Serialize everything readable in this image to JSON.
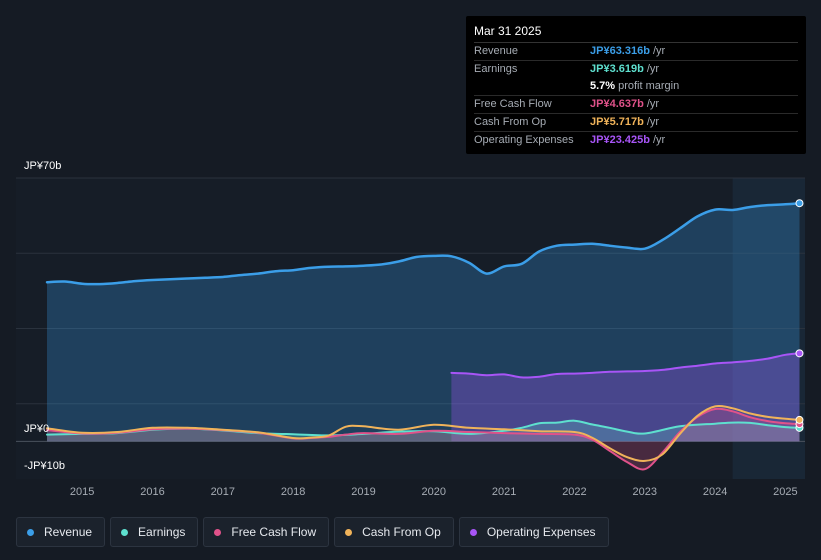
{
  "tooltip": {
    "date": "Mar 31 2025",
    "rows": {
      "revenue": {
        "label": "Revenue",
        "value": "JP¥63.316b",
        "unit": "/yr",
        "color": "#3b9ee8"
      },
      "earnings": {
        "label": "Earnings",
        "value": "JP¥3.619b",
        "unit": "/yr",
        "color": "#5ee0cf"
      },
      "margin": {
        "value": "5.7%",
        "text": "profit margin"
      },
      "fcf": {
        "label": "Free Cash Flow",
        "value": "JP¥4.637b",
        "unit": "/yr",
        "color": "#e0528a"
      },
      "cfo": {
        "label": "Cash From Op",
        "value": "JP¥5.717b",
        "unit": "/yr",
        "color": "#f0b35a"
      },
      "opex": {
        "label": "Operating Expenses",
        "value": "JP¥23.425b",
        "unit": "/yr",
        "color": "#a855f7"
      }
    }
  },
  "legend": {
    "revenue": {
      "label": "Revenue",
      "color": "#3b9ee8"
    },
    "earnings": {
      "label": "Earnings",
      "color": "#5ee0cf"
    },
    "fcf": {
      "label": "Free Cash Flow",
      "color": "#e0528a"
    },
    "cfo": {
      "label": "Cash From Op",
      "color": "#f0b35a"
    },
    "opex": {
      "label": "Operating Expenses",
      "color": "#a855f7"
    }
  },
  "chart_data": {
    "type": "area",
    "title": "",
    "y_top_label": "JP¥70b",
    "y_zero_label": "JP¥0",
    "y_bottom_label": "-JP¥10b",
    "ylim": [
      -10,
      70
    ],
    "xlim": [
      2014.5,
      2025.25
    ],
    "x_ticks": [
      "2015",
      "2016",
      "2017",
      "2018",
      "2019",
      "2020",
      "2021",
      "2022",
      "2023",
      "2024",
      "2025"
    ],
    "highlight_from": 2024.25,
    "series": [
      {
        "name": "Revenue",
        "key": "revenue",
        "color": "#3b9ee8",
        "fill": true,
        "x": [
          2014.5,
          2014.75,
          2015.0,
          2015.25,
          2015.5,
          2015.75,
          2016.0,
          2016.25,
          2016.5,
          2016.75,
          2017.0,
          2017.25,
          2017.5,
          2017.75,
          2018.0,
          2018.25,
          2018.5,
          2018.75,
          2019.0,
          2019.25,
          2019.5,
          2019.75,
          2020.0,
          2020.25,
          2020.5,
          2020.75,
          2021.0,
          2021.25,
          2021.5,
          2021.75,
          2022.0,
          2022.25,
          2022.5,
          2022.75,
          2023.0,
          2023.25,
          2023.5,
          2023.75,
          2024.0,
          2024.25,
          2024.5,
          2024.75,
          2025.0,
          2025.2
        ],
        "values": [
          42.3,
          42.5,
          41.9,
          41.8,
          42.1,
          42.6,
          42.9,
          43.1,
          43.3,
          43.5,
          43.7,
          44.2,
          44.6,
          45.2,
          45.5,
          46.1,
          46.4,
          46.5,
          46.7,
          47.0,
          47.8,
          49.0,
          49.3,
          49.2,
          47.5,
          44.6,
          46.5,
          47.2,
          50.5,
          52.0,
          52.3,
          52.5,
          52.0,
          51.5,
          51.2,
          53.5,
          56.6,
          59.8,
          61.6,
          61.5,
          62.3,
          62.8,
          63.0,
          63.3
        ]
      },
      {
        "name": "Operating Expenses",
        "key": "opex",
        "color": "#a855f7",
        "fill": true,
        "x": [
          2020.25,
          2020.5,
          2020.75,
          2021.0,
          2021.25,
          2021.5,
          2021.75,
          2022.0,
          2022.25,
          2022.5,
          2022.75,
          2023.0,
          2023.25,
          2023.5,
          2023.75,
          2024.0,
          2024.25,
          2024.5,
          2024.75,
          2025.0,
          2025.2
        ],
        "values": [
          18.2,
          18.0,
          17.6,
          17.8,
          17.0,
          17.2,
          17.9,
          18.0,
          18.2,
          18.5,
          18.6,
          18.7,
          19.0,
          19.6,
          20.1,
          20.7,
          21.0,
          21.4,
          22.0,
          23.0,
          23.4
        ]
      },
      {
        "name": "Earnings",
        "key": "earnings",
        "color": "#5ee0cf",
        "fill": true,
        "x": [
          2014.5,
          2015.0,
          2015.5,
          2016.0,
          2016.5,
          2017.0,
          2017.5,
          2018.0,
          2018.5,
          2019.0,
          2019.5,
          2020.0,
          2020.5,
          2021.0,
          2021.25,
          2021.5,
          2021.75,
          2022.0,
          2022.25,
          2022.5,
          2022.75,
          2023.0,
          2023.5,
          2024.0,
          2024.25,
          2024.5,
          2024.75,
          2025.0,
          2025.2
        ],
        "values": [
          1.8,
          2.0,
          2.2,
          3.1,
          3.4,
          2.9,
          2.2,
          1.9,
          1.6,
          2.0,
          2.6,
          2.7,
          2.0,
          2.8,
          3.6,
          4.8,
          5.0,
          5.5,
          4.5,
          3.6,
          2.6,
          2.1,
          4.0,
          4.7,
          5.0,
          4.9,
          4.3,
          3.8,
          3.6
        ]
      },
      {
        "name": "Free Cash Flow",
        "key": "fcf",
        "color": "#e0528a",
        "fill": true,
        "x": [
          2014.5,
          2015.0,
          2015.5,
          2016.0,
          2016.5,
          2017.0,
          2017.5,
          2018.0,
          2018.25,
          2018.5,
          2018.75,
          2019.0,
          2019.5,
          2020.0,
          2020.5,
          2021.0,
          2021.5,
          2022.0,
          2022.25,
          2022.5,
          2022.75,
          2023.0,
          2023.25,
          2023.5,
          2023.75,
          2024.0,
          2024.25,
          2024.5,
          2024.75,
          2025.0,
          2025.2
        ],
        "values": [
          3.0,
          2.1,
          2.3,
          3.2,
          3.4,
          3.0,
          2.3,
          0.8,
          0.9,
          1.2,
          1.8,
          2.2,
          2.0,
          2.8,
          2.5,
          2.2,
          2.0,
          1.8,
          0.5,
          -2.5,
          -5.5,
          -7.4,
          -3.0,
          2.5,
          6.5,
          8.6,
          8.0,
          6.4,
          5.4,
          4.8,
          4.6
        ]
      },
      {
        "name": "Cash From Op",
        "key": "cfo",
        "color": "#f0b35a",
        "fill": false,
        "x": [
          2014.5,
          2015.0,
          2015.5,
          2016.0,
          2016.5,
          2017.0,
          2017.5,
          2018.0,
          2018.25,
          2018.5,
          2018.75,
          2019.0,
          2019.5,
          2020.0,
          2020.5,
          2021.0,
          2021.5,
          2022.0,
          2022.25,
          2022.5,
          2022.75,
          2023.0,
          2023.25,
          2023.5,
          2023.75,
          2024.0,
          2024.25,
          2024.5,
          2024.75,
          2025.0,
          2025.2
        ],
        "values": [
          3.5,
          2.3,
          2.5,
          3.6,
          3.6,
          3.1,
          2.4,
          0.9,
          1.0,
          1.5,
          3.9,
          4.0,
          3.1,
          4.4,
          3.6,
          3.2,
          2.7,
          2.5,
          1.0,
          -1.8,
          -4.2,
          -5.2,
          -3.5,
          2.0,
          6.8,
          9.3,
          8.8,
          7.4,
          6.5,
          6.0,
          5.7
        ]
      }
    ]
  }
}
